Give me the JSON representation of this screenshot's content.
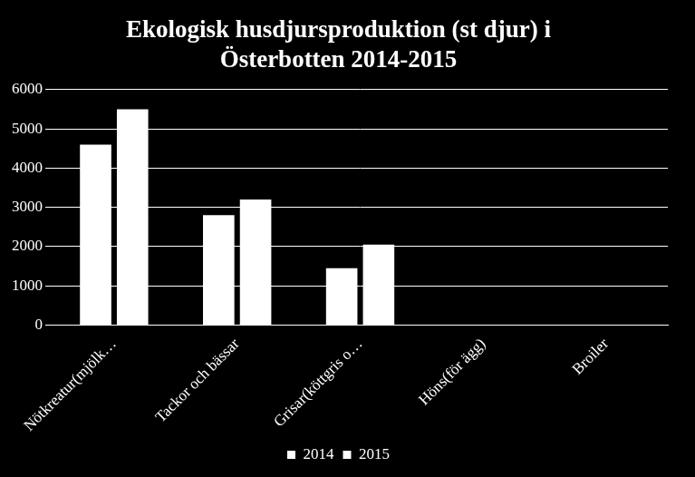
{
  "chart_data": {
    "type": "bar",
    "title": [
      "Ekologisk husdjursproduktion (st djur) i",
      "Österbotten 2014-2015"
    ],
    "categories": [
      "Nötkreatur(mjölk…",
      "Tackor och bässar",
      "Grisar(köttgris o…",
      "Höns(för ägg)",
      "Broiler"
    ],
    "series": [
      {
        "name": "2014",
        "color": "#ffffff",
        "values": [
          4600,
          2800,
          1450,
          0,
          0
        ]
      },
      {
        "name": "2015",
        "color": "#ffffff",
        "values": [
          5500,
          3200,
          2050,
          0,
          0
        ]
      }
    ],
    "ylim": [
      0,
      6000
    ],
    "yticks": [
      0,
      1000,
      2000,
      3000,
      4000,
      5000,
      6000
    ],
    "grid": true,
    "legend": "bottom"
  }
}
